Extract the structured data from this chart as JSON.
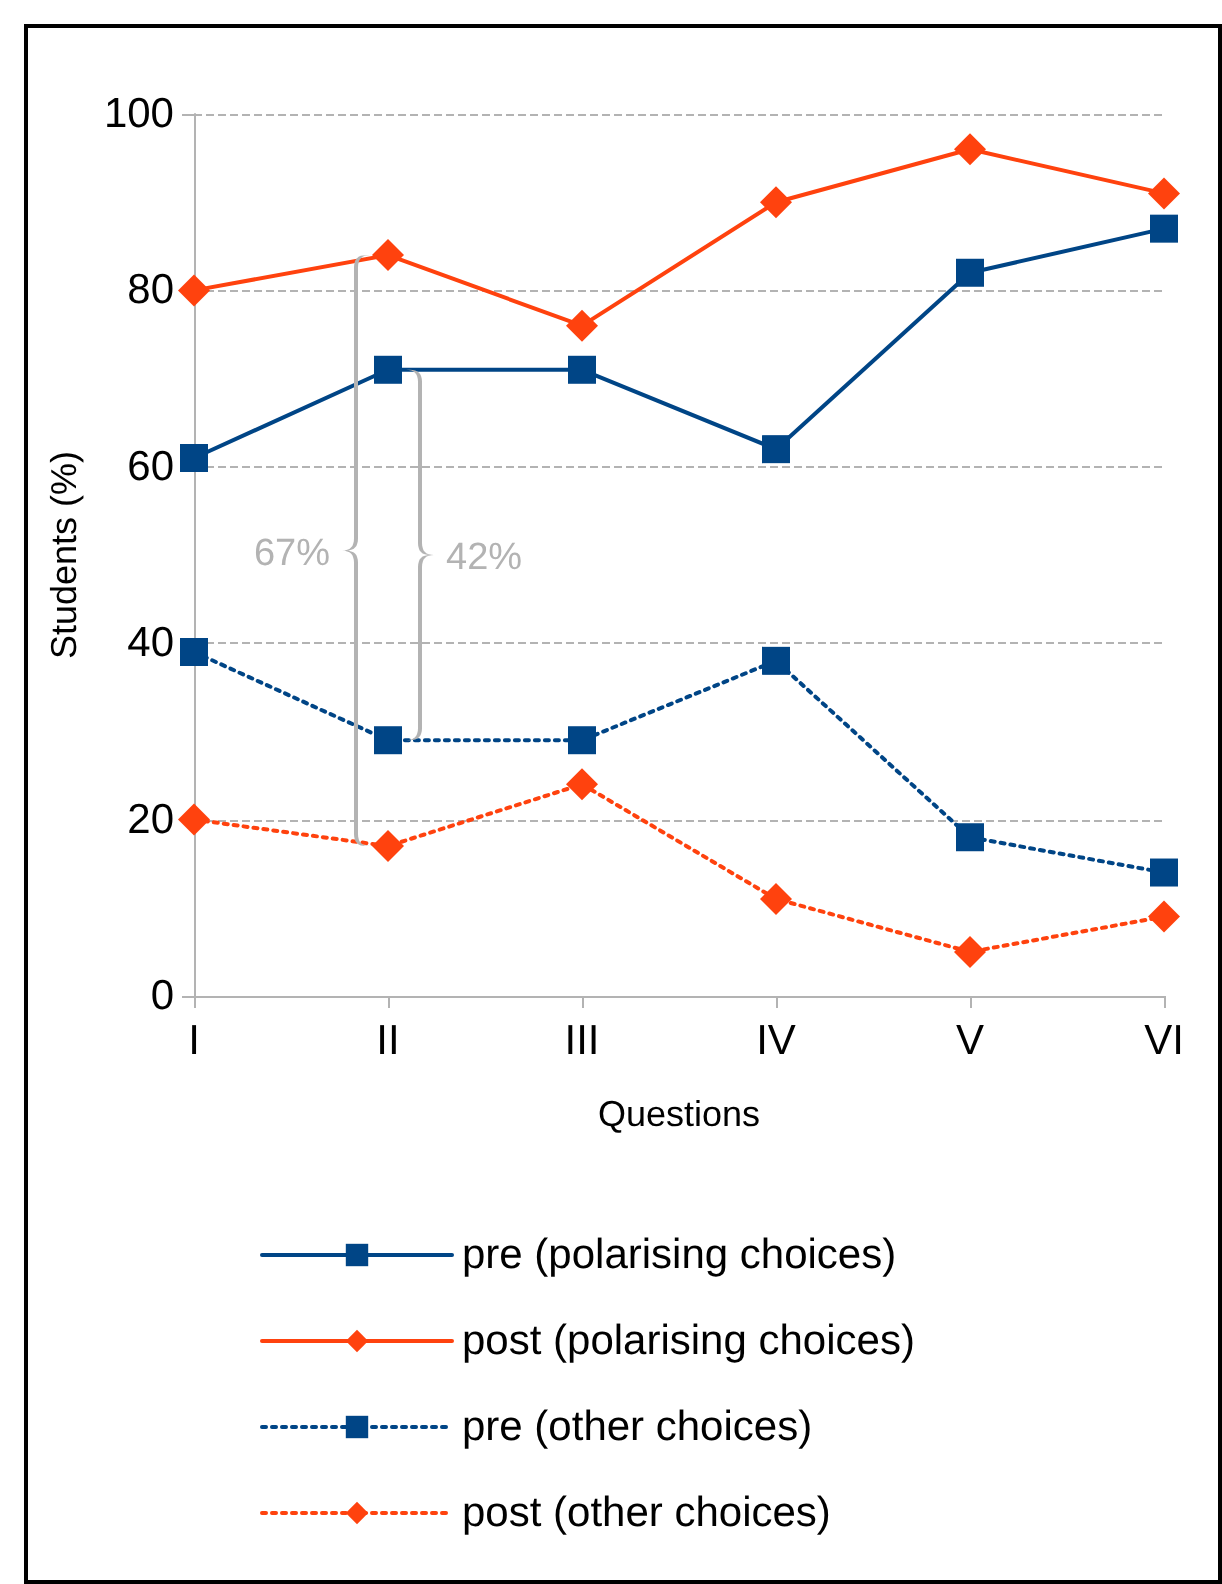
{
  "chart_data": {
    "type": "line",
    "xlabel": "Questions",
    "ylabel": "Students (%)",
    "categories": [
      "I",
      "II",
      "III",
      "IV",
      "V",
      "VI"
    ],
    "ylim": [
      0,
      100
    ],
    "yticks": [
      0,
      20,
      40,
      60,
      80,
      100
    ],
    "grid": "y",
    "legend": "bottom",
    "series": [
      {
        "name": "pre (polarising choices)",
        "color": "#004586",
        "marker": "square",
        "line_style": "solid",
        "values": [
          61,
          71,
          71,
          62,
          82,
          87
        ]
      },
      {
        "name": "post (polarising choices)",
        "color": "#ff420e",
        "marker": "diamond",
        "line_style": "solid",
        "values": [
          80,
          84,
          76,
          90,
          96,
          91
        ]
      },
      {
        "name": "pre (other choices)",
        "color": "#004586",
        "marker": "square",
        "line_style": "dotted",
        "values": [
          39,
          29,
          29,
          38,
          18,
          14
        ]
      },
      {
        "name": "post (other choices)",
        "color": "#ff420e",
        "marker": "diamond",
        "line_style": "dotted",
        "values": [
          20,
          17,
          24,
          11,
          5,
          9
        ]
      }
    ],
    "annotations": [
      "67%",
      "42%"
    ]
  }
}
